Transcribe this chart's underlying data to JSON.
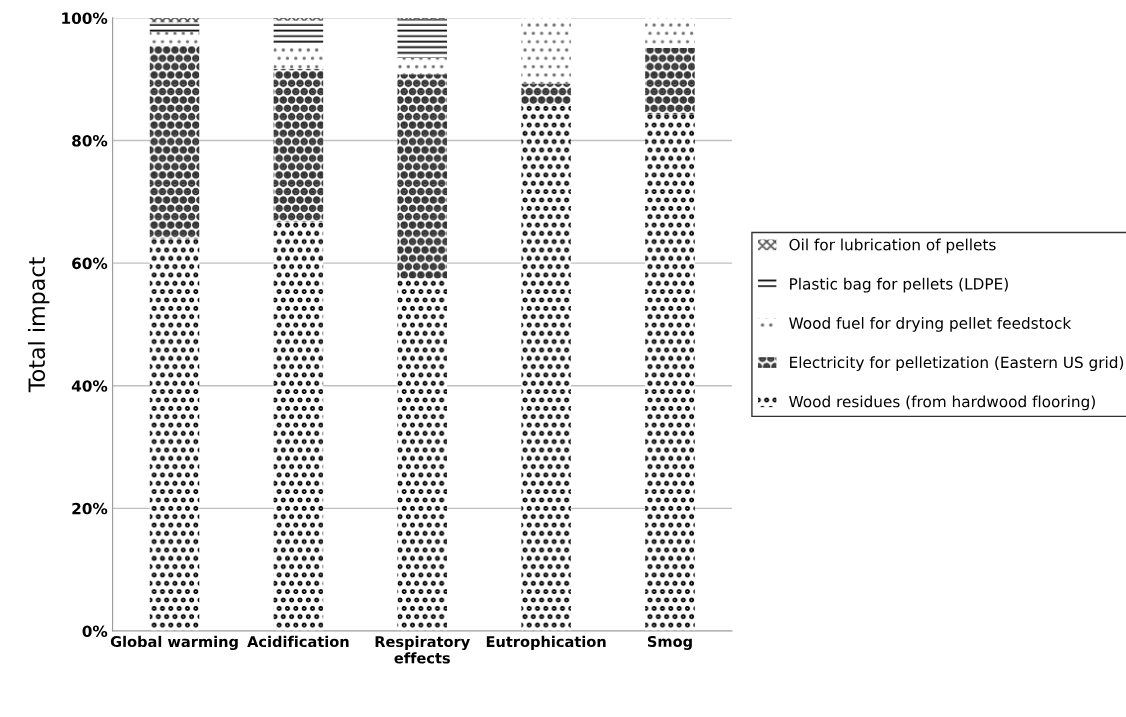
{
  "chart_data": {
    "type": "bar",
    "stacked": true,
    "ylabel": "Total impact",
    "categories": [
      "Global warming",
      "Acidification",
      "Respiratory effects",
      "Eutrophication",
      "Smog"
    ],
    "series": [
      {
        "name": "Wood residues (from hardwood flooring)",
        "color": "#000000",
        "values": [
          64,
          66.7,
          57.5,
          85.8,
          84.3
        ]
      },
      {
        "name": "Electricity for pelletization (Eastern US grid)",
        "color": "#303030",
        "values": [
          31.5,
          25,
          33.3,
          3.5,
          10.8
        ]
      },
      {
        "name": "Wood fuel for drying pellet feedstock",
        "color": "#707070",
        "values": [
          2.2,
          4,
          2.7,
          10.7,
          4.9
        ]
      },
      {
        "name": "Plastic bag for pellets (LDPE)",
        "color": "#000000",
        "values": [
          1.6,
          3.9,
          6.3,
          0,
          0
        ]
      },
      {
        "name": "Oil for lubrication of pellets",
        "color": "#505050",
        "values": [
          0.7,
          0.4,
          0.2,
          0,
          0
        ]
      }
    ],
    "ylim": [
      0,
      100
    ],
    "yticks": [
      {
        "value": 0,
        "label": "0%"
      },
      {
        "value": 20,
        "label": "20%"
      },
      {
        "value": 40,
        "label": "40%"
      },
      {
        "value": 60,
        "label": "60%"
      },
      {
        "value": 80,
        "label": "80%"
      },
      {
        "value": 100,
        "label": "100%"
      }
    ],
    "grid": "y",
    "legend": "right"
  }
}
